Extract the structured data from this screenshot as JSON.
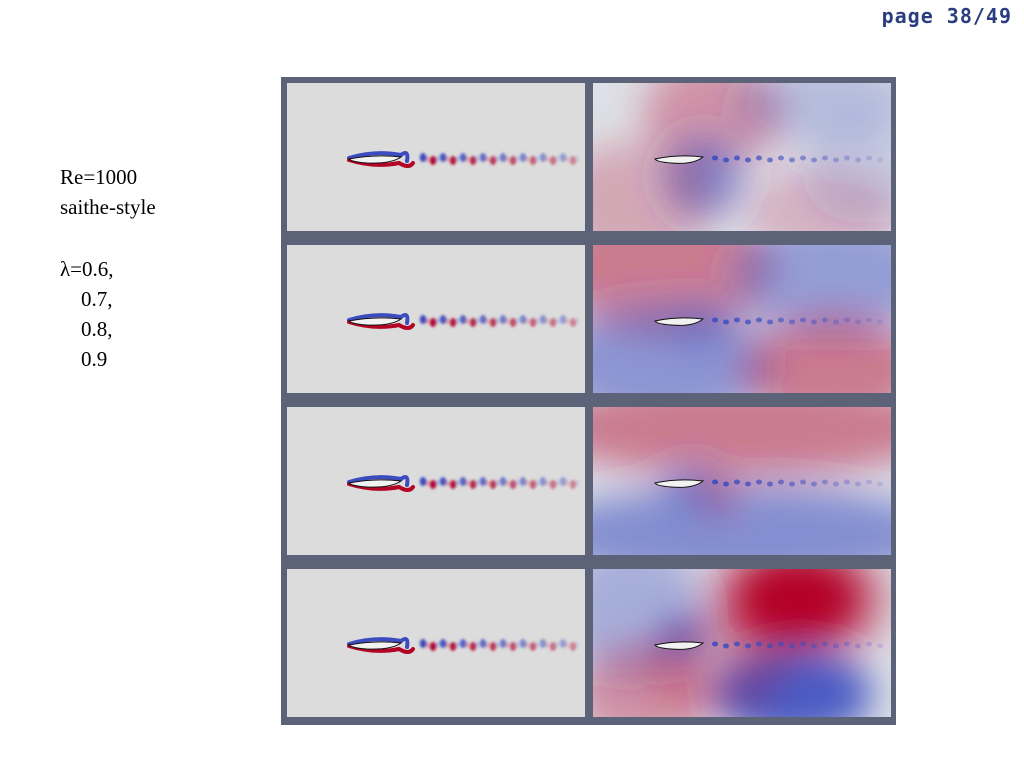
{
  "page_label": "page 38/49",
  "caption": {
    "line1": "Re=1000",
    "line2": "saithe-style",
    "line3": "λ=0.6,",
    "line4": "    0.7,",
    "line5": "    0.8,",
    "line6": "    0.9"
  },
  "colors": {
    "frame": "#5c6278",
    "background_gray": "#dcdcdc",
    "red": "#b40426",
    "blue": "#3b4cc0"
  },
  "rows": [
    {
      "lambda": 0.6
    },
    {
      "lambda": 0.7
    },
    {
      "lambda": 0.8
    },
    {
      "lambda": 0.9
    }
  ]
}
